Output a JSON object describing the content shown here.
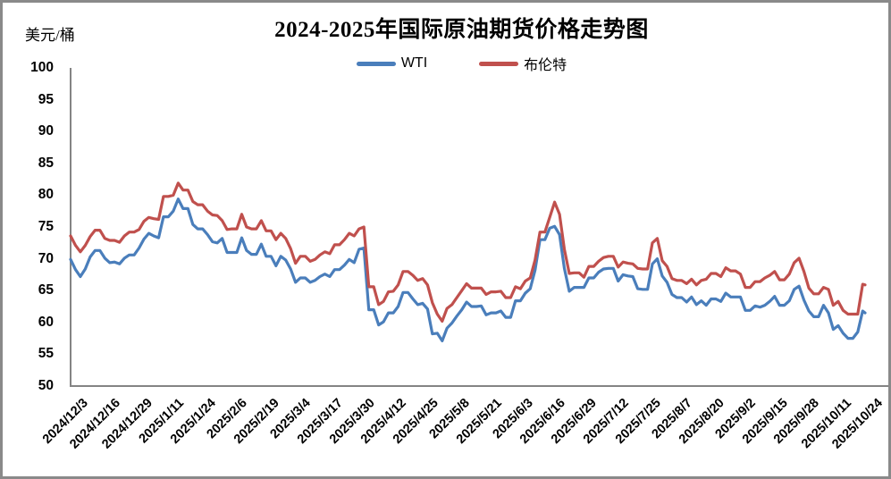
{
  "chart_data": {
    "type": "line",
    "title": "2024-2025年国际原油期货价格走势图",
    "ylabel_unit": "美元/桶",
    "ylim": [
      50,
      100
    ],
    "y_ticks": [
      100,
      95,
      90,
      85,
      80,
      75,
      70,
      65,
      60,
      55,
      50
    ],
    "grid": false,
    "legend_position": "top-center",
    "x_tick_rotation": -45,
    "sampling_note": "values sampled every 2 calendar days from 2024/12/3 through 2025/10/23 plus final point 2025/10/24 (weekends carry previous close)",
    "categories": [
      "2024/12/3",
      "2024/12/16",
      "2024/12/29",
      "2025/1/11",
      "2025/1/24",
      "2025/2/6",
      "2025/2/19",
      "2025/3/4",
      "2025/3/17",
      "2025/3/30",
      "2025/4/12",
      "2025/4/25",
      "2025/5/8",
      "2025/5/21",
      "2025/6/3",
      "2025/6/16",
      "2025/6/29",
      "2025/7/12",
      "2025/7/25",
      "2025/8/7",
      "2025/8/20",
      "2025/9/2",
      "2025/9/15",
      "2025/9/28",
      "2025/10/11",
      "2025/10/24"
    ],
    "series": [
      {
        "name": "WTI",
        "color": "#4A7EBB",
        "values": [
          69.9,
          68.3,
          67.2,
          68.4,
          70.3,
          71.3,
          71.3,
          70.1,
          69.4,
          69.5,
          69.2,
          70.1,
          70.6,
          70.6,
          71.7,
          73.1,
          74.0,
          73.6,
          73.3,
          76.6,
          76.6,
          77.5,
          79.4,
          77.9,
          77.9,
          75.4,
          74.7,
          74.7,
          73.8,
          72.7,
          72.5,
          73.2,
          71.0,
          71.0,
          71.0,
          73.3,
          71.3,
          70.7,
          70.7,
          72.3,
          70.4,
          70.4,
          68.9,
          70.4,
          69.8,
          68.4,
          66.3,
          67.0,
          67.0,
          66.3,
          66.6,
          67.2,
          67.6,
          67.2,
          68.3,
          68.3,
          69.0,
          69.9,
          69.4,
          71.5,
          71.7,
          62.0,
          62.0,
          59.6,
          60.1,
          61.5,
          61.5,
          62.5,
          64.7,
          64.7,
          63.7,
          62.8,
          63.0,
          62.1,
          58.2,
          58.3,
          57.1,
          59.1,
          59.9,
          61.0,
          62.0,
          63.2,
          62.5,
          62.5,
          62.6,
          61.2,
          61.5,
          61.5,
          61.8,
          60.8,
          60.8,
          63.4,
          63.4,
          64.6,
          65.3,
          68.2,
          73.0,
          73.0,
          74.8,
          75.1,
          73.8,
          68.5,
          64.9,
          65.5,
          65.5,
          65.5,
          67.0,
          67.0,
          67.9,
          68.4,
          68.5,
          68.5,
          66.5,
          67.5,
          67.3,
          67.2,
          65.3,
          65.2,
          65.2,
          69.2,
          70.0,
          67.3,
          66.3,
          64.4,
          63.9,
          63.9,
          63.2,
          64.0,
          62.8,
          63.4,
          62.7,
          63.7,
          63.7,
          63.3,
          64.6,
          64.0,
          64.0,
          64.0,
          61.9,
          61.9,
          62.6,
          62.4,
          62.7,
          63.3,
          64.1,
          62.7,
          62.7,
          63.4,
          65.2,
          65.7,
          63.5,
          61.8,
          60.9,
          60.9,
          62.7,
          61.5,
          58.9,
          59.5,
          58.3,
          57.5,
          57.5,
          58.5,
          61.8,
          61.5
        ]
      },
      {
        "name": "布伦特",
        "color": "#C0504D",
        "values": [
          73.6,
          72.1,
          71.1,
          72.1,
          73.5,
          74.5,
          74.5,
          73.2,
          72.9,
          72.9,
          72.6,
          73.6,
          74.2,
          74.2,
          74.6,
          75.9,
          76.5,
          76.3,
          76.2,
          79.8,
          79.8,
          80.0,
          81.9,
          80.8,
          80.8,
          79.0,
          78.5,
          78.5,
          77.5,
          76.9,
          76.8,
          76.0,
          74.6,
          74.7,
          74.7,
          77.0,
          75.0,
          74.7,
          74.7,
          76.0,
          74.4,
          74.4,
          73.0,
          74.0,
          73.2,
          71.6,
          69.3,
          70.4,
          70.4,
          69.6,
          69.9,
          70.6,
          71.1,
          70.8,
          72.2,
          72.2,
          73.0,
          74.0,
          73.6,
          74.7,
          75.0,
          65.6,
          65.6,
          62.8,
          63.3,
          64.8,
          64.9,
          65.9,
          68.0,
          68.0,
          67.4,
          66.6,
          66.9,
          65.9,
          63.1,
          61.3,
          60.2,
          62.2,
          62.8,
          63.9,
          65.0,
          66.1,
          65.4,
          65.4,
          65.4,
          64.4,
          64.8,
          64.8,
          64.9,
          63.9,
          63.9,
          65.6,
          65.3,
          66.5,
          67.0,
          69.8,
          74.2,
          74.2,
          76.5,
          78.9,
          77.0,
          71.5,
          67.7,
          67.8,
          67.8,
          67.1,
          68.8,
          68.8,
          69.6,
          70.2,
          70.4,
          70.4,
          68.7,
          69.5,
          69.3,
          69.2,
          68.5,
          68.4,
          68.4,
          72.5,
          73.2,
          69.7,
          68.8,
          66.9,
          66.6,
          66.6,
          66.1,
          66.8,
          65.9,
          66.6,
          66.8,
          67.7,
          67.7,
          67.2,
          68.6,
          68.1,
          68.1,
          67.6,
          65.5,
          65.5,
          66.4,
          66.4,
          67.0,
          67.4,
          68.0,
          66.7,
          66.7,
          67.6,
          69.4,
          70.1,
          68.0,
          65.4,
          64.5,
          64.5,
          65.5,
          65.2,
          62.7,
          63.3,
          61.9,
          61.3,
          61.3,
          61.3,
          66.0,
          65.9
        ]
      }
    ],
    "axis_color": "#848484"
  }
}
